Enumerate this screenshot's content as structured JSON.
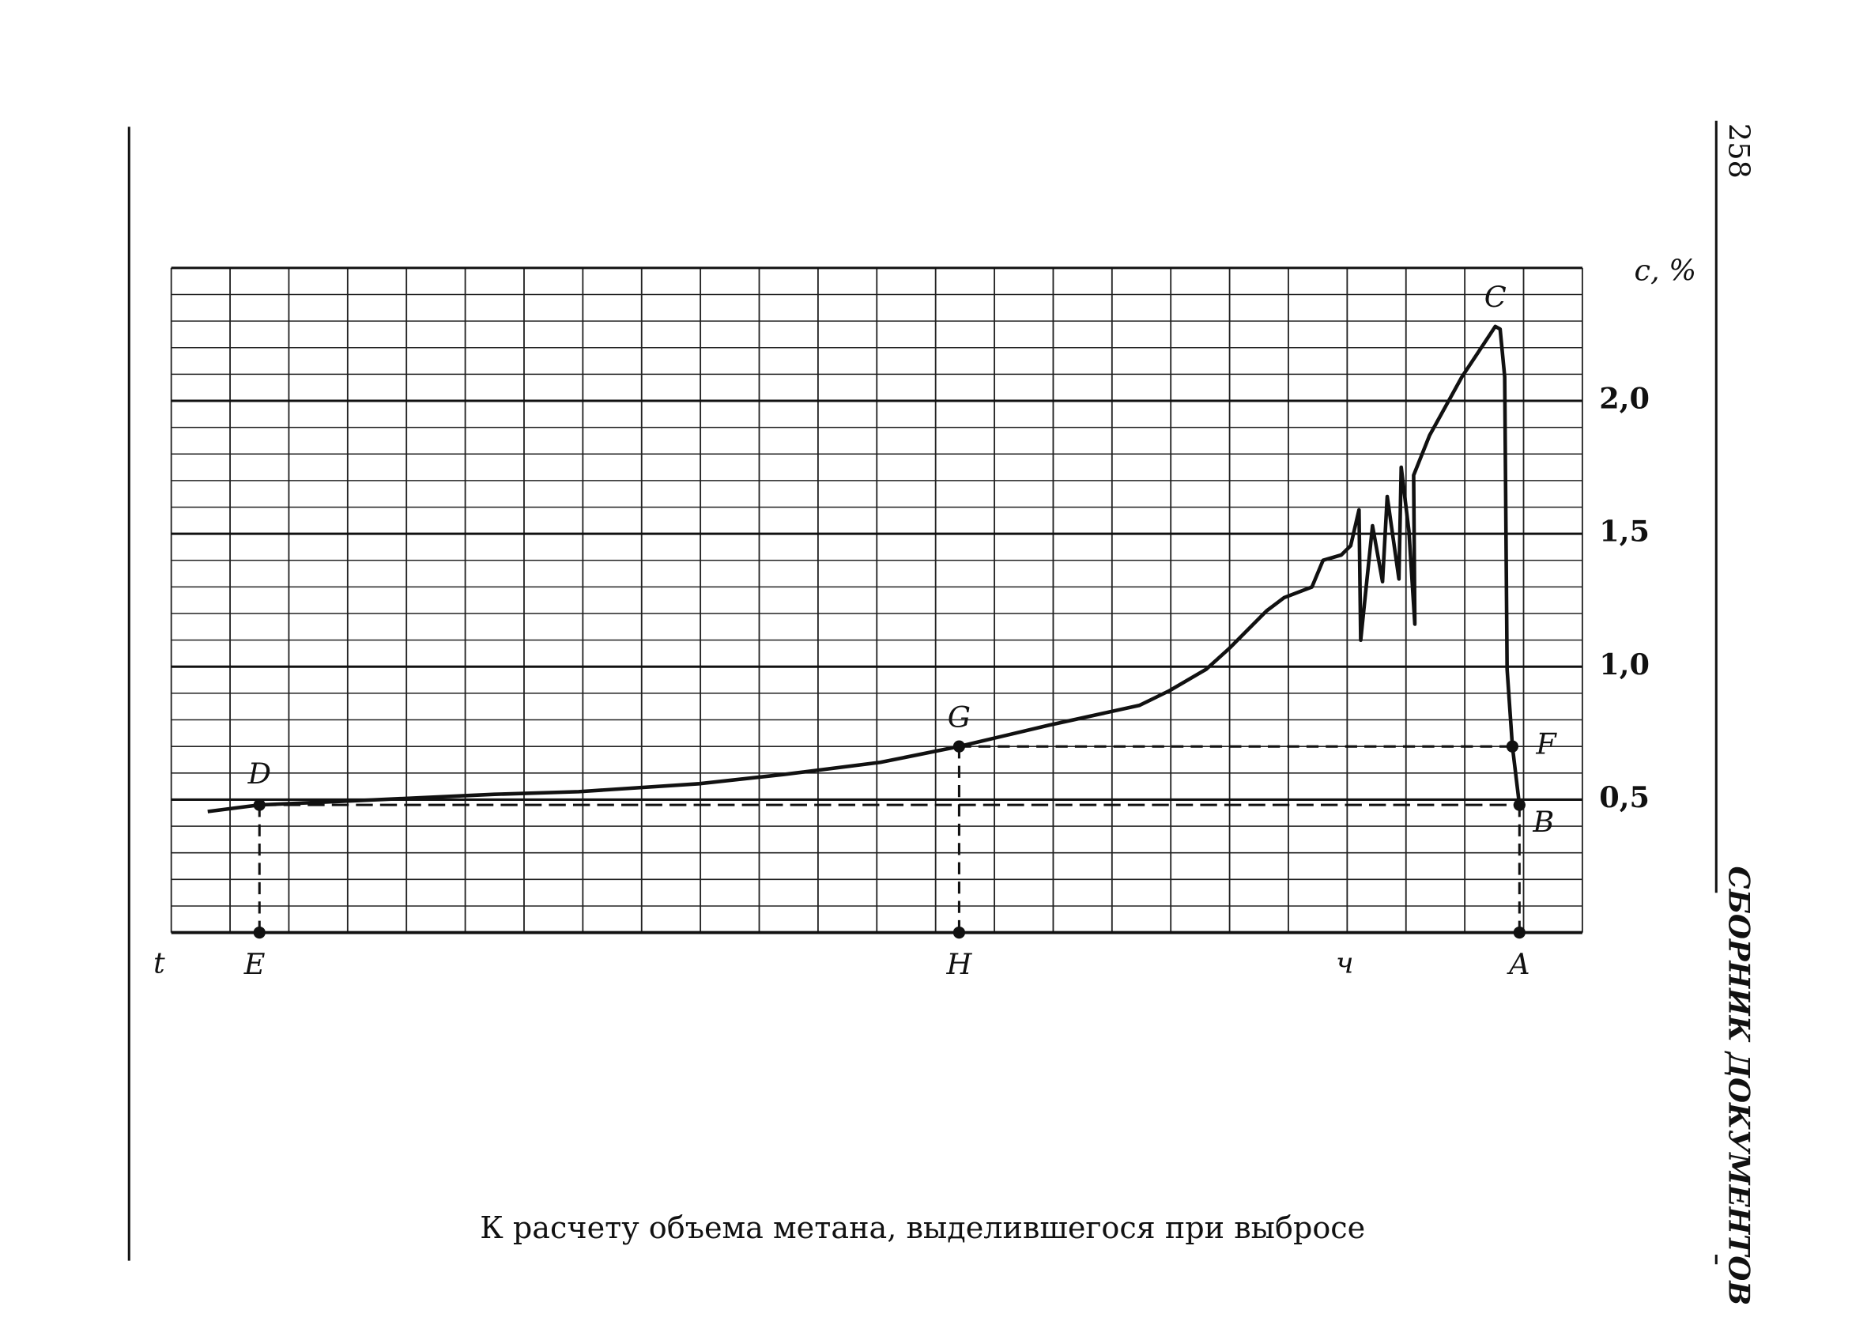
{
  "page_number": "258",
  "running_header": "СБОРНИК ДОКУМЕНТОВ",
  "chart_data": {
    "type": "line",
    "title": "К расчету объема метана, выделившегося при выбросе",
    "xlabel": "t",
    "x_unit": "ч",
    "ylabel": "c, %",
    "color": "#111111",
    "xlim": [
      0,
      24
    ],
    "ylim": [
      0,
      2.5
    ],
    "yticks": [
      {
        "value": 0.5,
        "label": "0,5"
      },
      {
        "value": 1.0,
        "label": "1,0"
      },
      {
        "value": 1.5,
        "label": "1,5"
      },
      {
        "value": 2.0,
        "label": "2,0"
      }
    ],
    "grid": true,
    "x": [
      0.62,
      1.5,
      3.04,
      5.5,
      6.93,
      8.98,
      10.42,
      12.06,
      13.4,
      14.93,
      16.47,
      16.98,
      17.6,
      18.0,
      18.63,
      18.93,
      19.4,
      19.59,
      19.9,
      20.06,
      20.2,
      20.23,
      20.43,
      20.6,
      20.68,
      20.88,
      20.92,
      21.05,
      21.15,
      21.13,
      21.4,
      21.95,
      22.28,
      22.52,
      22.6,
      22.68,
      22.72,
      22.81,
      22.93
    ],
    "values": [
      0.455,
      0.48,
      0.495,
      0.52,
      0.53,
      0.56,
      0.595,
      0.64,
      0.7,
      0.78,
      0.855,
      0.91,
      0.99,
      1.07,
      1.21,
      1.26,
      1.3,
      1.4,
      1.42,
      1.455,
      1.59,
      1.1,
      1.53,
      1.32,
      1.64,
      1.33,
      1.75,
      1.51,
      1.16,
      1.72,
      1.87,
      2.09,
      2.2,
      2.28,
      2.27,
      2.09,
      0.99,
      0.7,
      0.48
    ],
    "points": [
      {
        "label": "D",
        "x": 1.5,
        "y": 0.48
      },
      {
        "label": "E",
        "x": 1.5,
        "y": 0
      },
      {
        "label": "G",
        "x": 13.4,
        "y": 0.7
      },
      {
        "label": "H",
        "x": 13.4,
        "y": 0
      },
      {
        "label": "F",
        "x": 22.81,
        "y": 0.7
      },
      {
        "label": "B",
        "x": 22.93,
        "y": 0.48
      },
      {
        "label": "A",
        "x": 22.93,
        "y": 0
      }
    ],
    "annotations": [
      {
        "text": "C",
        "x": 22.52,
        "y": 2.28
      }
    ]
  }
}
